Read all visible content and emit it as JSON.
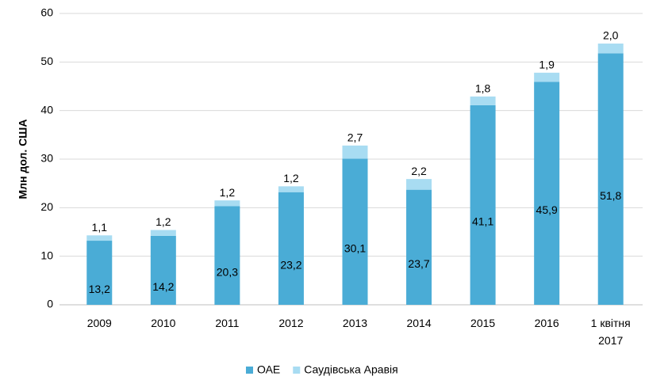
{
  "chart_data": {
    "type": "stacked_bar",
    "y_label": "Млн дол. США",
    "categories": [
      "2009",
      "2010",
      "2011",
      "2012",
      "2013",
      "2014",
      "2015",
      "2016",
      "1 квітня 2017"
    ],
    "series": [
      {
        "name": "ОАЕ",
        "color": "#4aacd6",
        "values": [
          13.2,
          14.2,
          20.3,
          23.2,
          30.1,
          23.7,
          41.1,
          45.9,
          51.8
        ],
        "value_labels": [
          "13,2",
          "14,2",
          "20,3",
          "23,2",
          "30,1",
          "23,7",
          "41,1",
          "45,9",
          "51,8"
        ]
      },
      {
        "name": "Саудівська Аравія",
        "color": "#a8dcf2",
        "values": [
          1.1,
          1.2,
          1.2,
          1.2,
          2.7,
          2.2,
          1.8,
          1.9,
          2.0
        ],
        "value_labels": [
          "1,1",
          "1,2",
          "1,2",
          "1,2",
          "2,7",
          "2,2",
          "1,8",
          "1,9",
          "2,0"
        ]
      }
    ],
    "ylim": [
      0,
      60
    ],
    "yticks": [
      0,
      10,
      20,
      30,
      40,
      50,
      60
    ],
    "grid": true,
    "legend": "bottom"
  }
}
